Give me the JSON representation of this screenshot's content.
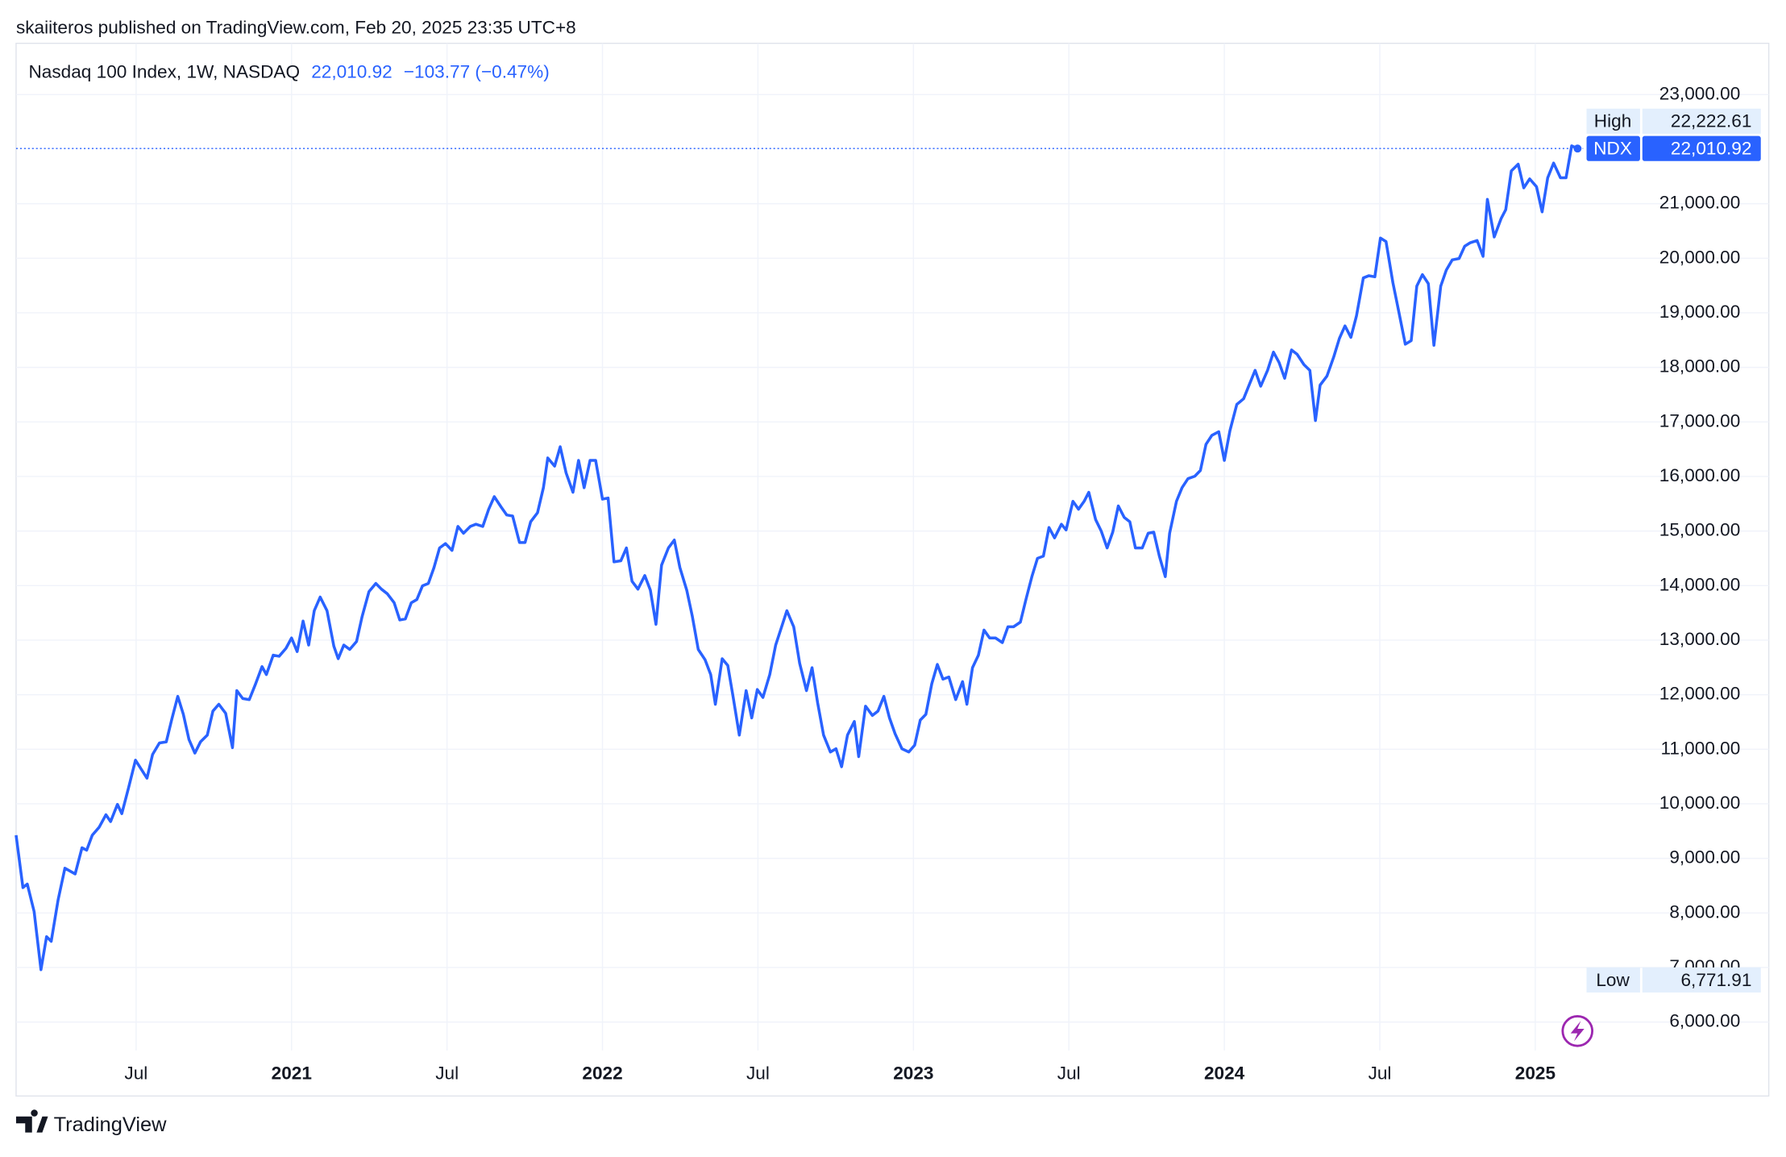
{
  "published": "skaiiteros published on TradingView.com, Feb 20, 2025 23:35 UTC+8",
  "brand": "TradingView",
  "chart_data": {
    "type": "line",
    "title": "Nasdaq 100 Index, 1W, NASDAQ",
    "change": "−103.77 (−0.47%)",
    "last_label": {
      "value": 22010.92,
      "label": "22,010.92"
    },
    "high": {
      "name": "High",
      "value": 22222.61,
      "label": "22,222.61"
    },
    "low": {
      "name": "Low",
      "value": 6771.91,
      "label": "6,771.91"
    },
    "xlim": [
      2020.114,
      2025.751
    ],
    "ylim": [
      5480,
      23940
    ],
    "grid": true,
    "xticks": [
      {
        "value": 2020.5,
        "label": "Jul"
      },
      {
        "value": 2021,
        "label": "2021"
      },
      {
        "value": 2021.5,
        "label": "Jul"
      },
      {
        "value": 2022,
        "label": "2022"
      },
      {
        "value": 2022.5,
        "label": "Jul"
      },
      {
        "value": 2023,
        "label": "2023"
      },
      {
        "value": 2023.5,
        "label": "Jul"
      },
      {
        "value": 2024,
        "label": "2024"
      },
      {
        "value": 2024.5,
        "label": "Jul"
      },
      {
        "value": 2025,
        "label": "2025"
      }
    ],
    "yticks": [
      {
        "value": 6000,
        "label": "6,000.00"
      },
      {
        "value": 7000,
        "label": "7,000.00"
      },
      {
        "value": 8000,
        "label": "8,000.00"
      },
      {
        "value": 9000,
        "label": "9,000.00"
      },
      {
        "value": 10000,
        "label": "10,000.00"
      },
      {
        "value": 11000,
        "label": "11,000.00"
      },
      {
        "value": 12000,
        "label": "12,000.00"
      },
      {
        "value": 13000,
        "label": "13,000.00"
      },
      {
        "value": 14000,
        "label": "14,000.00"
      },
      {
        "value": 15000,
        "label": "15,000.00"
      },
      {
        "value": 16000,
        "label": "16,000.00"
      },
      {
        "value": 17000,
        "label": "17,000.00"
      },
      {
        "value": 18000,
        "label": "18,000.00"
      },
      {
        "value": 19000,
        "label": "19,000.00"
      },
      {
        "value": 20000,
        "label": "20,000.00"
      },
      {
        "value": 21000,
        "label": "21,000.00"
      },
      {
        "value": 23000,
        "label": "23,000.00"
      }
    ],
    "x": [
      2020.114,
      2020.136,
      2020.15,
      2020.172,
      2020.194,
      2020.212,
      2020.227,
      2020.249,
      2020.271,
      2020.304,
      2020.326,
      2020.341,
      2020.359,
      2020.381,
      2020.403,
      2020.418,
      2020.44,
      2020.454,
      2020.476,
      2020.498,
      2020.535,
      2020.553,
      2020.575,
      2020.597,
      2020.615,
      2020.634,
      2020.652,
      2020.67,
      2020.689,
      2020.707,
      2020.729,
      2020.747,
      2020.766,
      2020.788,
      2020.81,
      2020.824,
      2020.843,
      2020.864,
      2020.883,
      2020.905,
      2020.919,
      2020.941,
      2020.96,
      2020.982,
      2021.0,
      2021.018,
      2021.037,
      2021.055,
      2021.073,
      2021.092,
      2021.114,
      2021.136,
      2021.15,
      2021.168,
      2021.187,
      2021.209,
      2021.227,
      2021.249,
      2021.271,
      2021.289,
      2021.308,
      2021.33,
      2021.348,
      2021.366,
      2021.385,
      2021.403,
      2021.421,
      2021.44,
      2021.458,
      2021.476,
      2021.495,
      2021.516,
      2021.535,
      2021.553,
      2021.575,
      2021.593,
      2021.615,
      2021.634,
      2021.652,
      2021.674,
      2021.692,
      2021.711,
      2021.733,
      2021.751,
      2021.769,
      2021.791,
      2021.81,
      2021.824,
      2021.846,
      2021.864,
      2021.883,
      2021.905,
      2021.923,
      2021.941,
      2021.96,
      2021.978,
      2022.0,
      2022.018,
      2022.037,
      2022.059,
      2022.077,
      2022.095,
      2022.114,
      2022.136,
      2022.154,
      2022.172,
      2022.19,
      2022.212,
      2022.231,
      2022.249,
      2022.271,
      2022.289,
      2022.308,
      2022.33,
      2022.348,
      2022.363,
      2022.385,
      2022.403,
      2022.421,
      2022.44,
      2022.462,
      2022.48,
      2022.498,
      2022.516,
      2022.538,
      2022.557,
      2022.575,
      2022.593,
      2022.615,
      2022.634,
      2022.656,
      2022.674,
      2022.692,
      2022.711,
      2022.733,
      2022.751,
      2022.769,
      2022.788,
      2022.81,
      2022.824,
      2022.846,
      2022.868,
      2022.886,
      2022.905,
      2022.923,
      2022.941,
      2022.963,
      2022.985,
      2023.004,
      2023.022,
      2023.04,
      2023.059,
      2023.077,
      2023.095,
      2023.114,
      2023.136,
      2023.158,
      2023.172,
      2023.19,
      2023.209,
      2023.227,
      2023.245,
      2023.264,
      2023.286,
      2023.304,
      2023.322,
      2023.344,
      2023.363,
      2023.381,
      2023.399,
      2023.418,
      2023.436,
      2023.454,
      2023.476,
      2023.491,
      2023.513,
      2023.531,
      2023.549,
      2023.564,
      2023.586,
      2023.604,
      2023.623,
      2023.641,
      2023.659,
      2023.678,
      2023.696,
      2023.714,
      2023.736,
      2023.755,
      2023.773,
      2023.791,
      2023.81,
      2023.824,
      2023.846,
      2023.864,
      2023.883,
      2023.905,
      2023.923,
      2023.941,
      2023.96,
      2023.982,
      2024.0,
      2024.018,
      2024.04,
      2024.062,
      2024.081,
      2024.099,
      2024.117,
      2024.139,
      2024.158,
      2024.176,
      2024.194,
      2024.216,
      2024.234,
      2024.256,
      2024.275,
      2024.293,
      2024.308,
      2024.33,
      2024.352,
      2024.37,
      2024.388,
      2024.407,
      2024.425,
      2024.447,
      2024.465,
      2024.484,
      2024.502,
      2024.52,
      2024.542,
      2024.56,
      2024.582,
      2024.601,
      2024.619,
      2024.637,
      2024.656,
      2024.674,
      2024.696,
      2024.714,
      2024.733,
      2024.755,
      2024.773,
      2024.791,
      2024.813,
      2024.832,
      2024.846,
      2024.868,
      2024.89,
      2024.905,
      2024.923,
      2024.945,
      2024.963,
      2024.982,
      2025.004,
      2025.022,
      2025.04,
      2025.059,
      2025.081,
      2025.099,
      2025.117,
      2025.136
    ],
    "series": [
      {
        "name": "NDX",
        "color": "#2962ff",
        "values": [
          9425,
          8465,
          8530,
          8025,
          6960,
          7565,
          7480,
          8235,
          8820,
          8715,
          9195,
          9150,
          9425,
          9570,
          9800,
          9675,
          9990,
          9820,
          10300,
          10800,
          10470,
          10905,
          11115,
          11135,
          11555,
          11970,
          11640,
          11180,
          10930,
          11135,
          11260,
          11700,
          11825,
          11660,
          11030,
          12075,
          11930,
          11910,
          12180,
          12515,
          12370,
          12725,
          12705,
          12850,
          13040,
          12790,
          13350,
          12910,
          13540,
          13790,
          13540,
          12890,
          12660,
          12910,
          12830,
          12975,
          13435,
          13890,
          14040,
          13935,
          13850,
          13685,
          13370,
          13390,
          13685,
          13745,
          13995,
          14040,
          14330,
          14690,
          14770,
          14645,
          15085,
          14960,
          15085,
          15125,
          15085,
          15400,
          15630,
          15440,
          15295,
          15275,
          14790,
          14790,
          15170,
          15335,
          15795,
          16340,
          16190,
          16545,
          16065,
          15710,
          16295,
          15795,
          16295,
          16295,
          15585,
          15605,
          14435,
          14455,
          14690,
          14080,
          13935,
          14185,
          13915,
          13290,
          14375,
          14690,
          14835,
          14330,
          13915,
          13435,
          12830,
          12640,
          12370,
          11825,
          12660,
          12535,
          11930,
          11260,
          12075,
          11575,
          12095,
          11950,
          12370,
          12910,
          13225,
          13540,
          13245,
          12580,
          12075,
          12495,
          11850,
          11260,
          10950,
          11010,
          10680,
          11260,
          11510,
          10865,
          11790,
          11620,
          11700,
          11970,
          11575,
          11285,
          11010,
          10950,
          11075,
          11535,
          11640,
          12200,
          12555,
          12285,
          12325,
          11910,
          12240,
          11825,
          12495,
          12725,
          13185,
          13040,
          13040,
          12955,
          13245,
          13245,
          13330,
          13770,
          14165,
          14500,
          14540,
          15065,
          14875,
          15125,
          15020,
          15545,
          15400,
          15545,
          15710,
          15210,
          15000,
          14690,
          14980,
          15460,
          15250,
          15170,
          14690,
          14690,
          14960,
          14980,
          14540,
          14165,
          14960,
          15545,
          15795,
          15960,
          16005,
          16110,
          16590,
          16755,
          16820,
          16295,
          16840,
          17320,
          17425,
          17695,
          17945,
          17655,
          17945,
          18280,
          18090,
          17800,
          18320,
          18240,
          18050,
          17945,
          17025,
          17675,
          17840,
          18195,
          18530,
          18760,
          18550,
          18945,
          19640,
          19680,
          19660,
          20370,
          20305,
          19555,
          19050,
          18425,
          18490,
          19490,
          19700,
          19535,
          18405,
          19490,
          19785,
          19970,
          19995,
          20220,
          20285,
          20325,
          20035,
          21080,
          20390,
          20725,
          20890,
          21600,
          21725,
          21290,
          21455,
          21310,
          20850,
          21475,
          21745,
          21475,
          21475,
          22060,
          22010.92
        ]
      }
    ]
  }
}
